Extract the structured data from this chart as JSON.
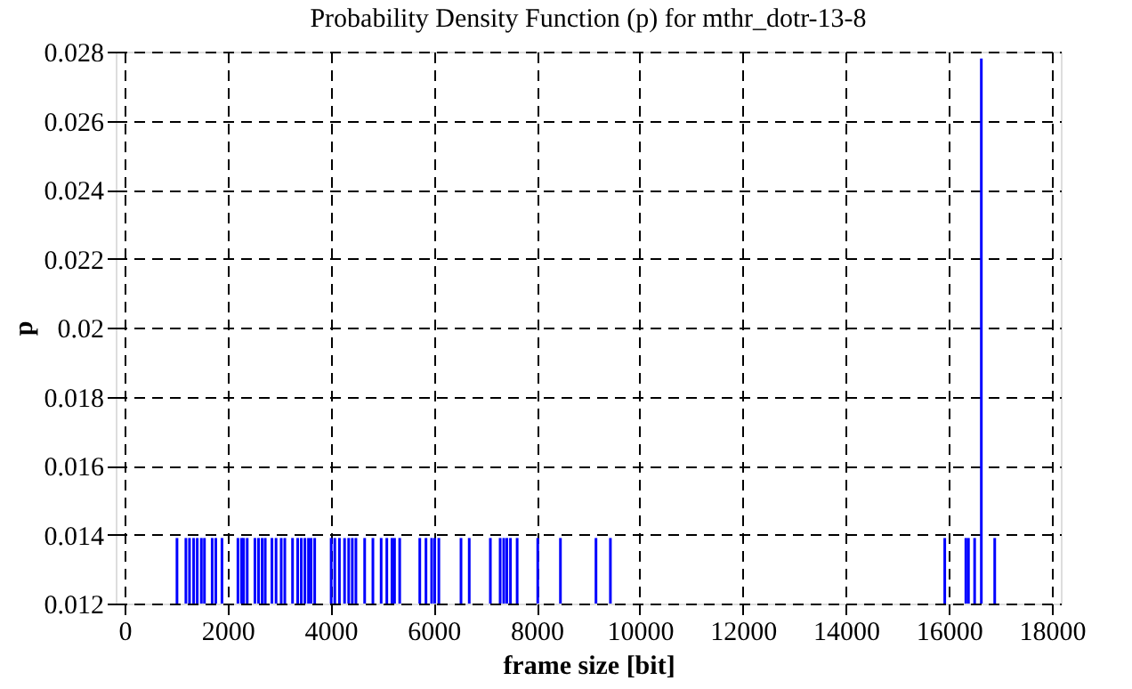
{
  "chart_data": {
    "type": "bar",
    "title": "Probability Density Function (p) for mthr_dotr-13-8",
    "xlabel": "frame size [bit]",
    "ylabel": "p",
    "x": [
      1017,
      1190,
      1260,
      1340,
      1410,
      1490,
      1550,
      1700,
      1770,
      1890,
      2200,
      2270,
      2310,
      2380,
      2530,
      2600,
      2670,
      2730,
      2860,
      2940,
      3040,
      3110,
      3260,
      3360,
      3430,
      3500,
      3570,
      3620,
      3690,
      4010,
      4080,
      4170,
      4270,
      4350,
      4420,
      4490,
      4660,
      4820,
      4980,
      5090,
      5190,
      5240,
      5340,
      5730,
      5850,
      5960,
      6020,
      6100,
      6530,
      6690,
      7100,
      7290,
      7360,
      7420,
      7490,
      7620,
      8020,
      8460,
      9150,
      9430,
      15920,
      16330,
      16380,
      16500,
      16630,
      16890
    ],
    "values": [
      0.0139,
      0.0139,
      0.0139,
      0.0139,
      0.0139,
      0.0139,
      0.0139,
      0.0139,
      0.0139,
      0.0139,
      0.0139,
      0.0139,
      0.0139,
      0.0139,
      0.0139,
      0.0139,
      0.0139,
      0.0139,
      0.0139,
      0.0139,
      0.0139,
      0.0139,
      0.0139,
      0.0139,
      0.0139,
      0.0139,
      0.0139,
      0.0139,
      0.0139,
      0.0139,
      0.0139,
      0.0139,
      0.0139,
      0.0139,
      0.0139,
      0.0139,
      0.0139,
      0.0139,
      0.0139,
      0.0139,
      0.0139,
      0.0139,
      0.0139,
      0.0139,
      0.0139,
      0.0139,
      0.0139,
      0.0139,
      0.0139,
      0.0139,
      0.0139,
      0.0139,
      0.0139,
      0.0139,
      0.0139,
      0.0139,
      0.0139,
      0.0139,
      0.0139,
      0.0139,
      0.0139,
      0.0139,
      0.0139,
      0.0139,
      0.0278,
      0.0139
    ],
    "color": "#0000ff",
    "xlim": [
      0,
      18000
    ],
    "xticks": [
      0,
      2000,
      4000,
      6000,
      8000,
      10000,
      12000,
      14000,
      16000,
      18000
    ],
    "ylim": [
      0.012,
      0.028
    ],
    "yticks": [
      0.012,
      0.014,
      0.016,
      0.018,
      0.02,
      0.022,
      0.024,
      0.026,
      0.028
    ],
    "grid": true
  }
}
